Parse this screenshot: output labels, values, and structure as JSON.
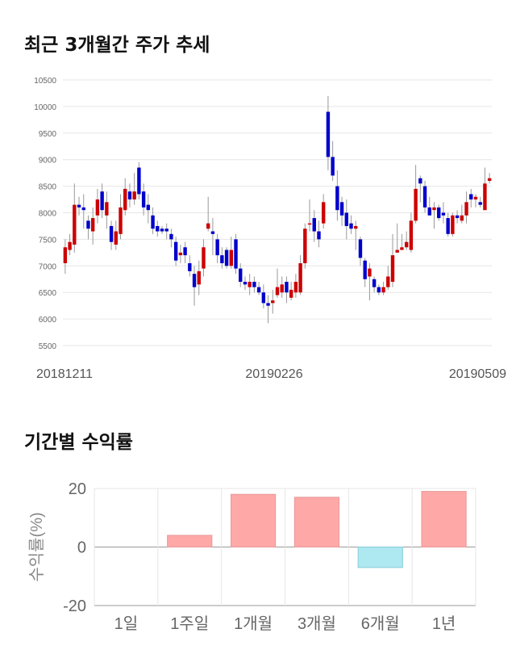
{
  "sections": {
    "price_trend_title": "최근 3개월간 주가 추세",
    "returns_title": "기간별 수익률"
  },
  "chart_data": [
    {
      "type": "candlestick",
      "title": "최근 3개월간 주가 추세",
      "ylim": [
        5500,
        10500
      ],
      "yticks": [
        5500,
        6000,
        6500,
        7000,
        7500,
        8000,
        8500,
        9000,
        9500,
        10000,
        10500
      ],
      "xticks": [
        "20181211",
        "20190226",
        "20190509"
      ],
      "grid": true,
      "up_color": "#cc0000",
      "down_color": "#0000cc",
      "candles": [
        [
          7050,
          7350,
          7500,
          6850
        ],
        [
          7300,
          7450,
          7600,
          7200
        ],
        [
          7400,
          8150,
          8550,
          7250
        ],
        [
          8150,
          8100,
          8300,
          7950
        ],
        [
          8100,
          8050,
          8350,
          7700
        ],
        [
          7850,
          7700,
          7950,
          7500
        ],
        [
          7650,
          7900,
          8100,
          7400
        ],
        [
          7950,
          8250,
          8450,
          7800
        ],
        [
          8400,
          8050,
          8550,
          7900
        ],
        [
          7950,
          8200,
          8400,
          7700
        ],
        [
          7750,
          7450,
          7850,
          7300
        ],
        [
          7400,
          7650,
          7850,
          7300
        ],
        [
          7600,
          8100,
          8350,
          7500
        ],
        [
          8050,
          8450,
          8650,
          7950
        ],
        [
          8400,
          8250,
          8550,
          8100
        ],
        [
          8250,
          8400,
          8750,
          8150
        ],
        [
          8850,
          8350,
          8950,
          8250
        ],
        [
          8400,
          8100,
          8550,
          7950
        ],
        [
          8150,
          8050,
          8350,
          7800
        ],
        [
          7950,
          7700,
          8100,
          7600
        ],
        [
          7750,
          7650,
          7850,
          7550
        ],
        [
          7700,
          7650,
          7750,
          7600
        ],
        [
          7700,
          7650,
          7800,
          7500
        ],
        [
          7600,
          7500,
          7700,
          7350
        ],
        [
          7450,
          7100,
          7550,
          7000
        ],
        [
          7200,
          7250,
          7400,
          7050
        ],
        [
          7350,
          7200,
          7450,
          7050
        ],
        [
          7050,
          6900,
          7200,
          6800
        ],
        [
          6850,
          6600,
          7000,
          6250
        ],
        [
          6650,
          6900,
          7100,
          6450
        ],
        [
          6950,
          7350,
          7500,
          6800
        ],
        [
          7700,
          7800,
          8300,
          7650
        ],
        [
          7650,
          7600,
          7900,
          7200
        ],
        [
          7500,
          7200,
          7600,
          7050
        ],
        [
          7200,
          7050,
          7350,
          6950
        ],
        [
          7300,
          7000,
          7350,
          6950
        ],
        [
          7000,
          7300,
          7550,
          6950
        ],
        [
          7500,
          6950,
          7600,
          6850
        ],
        [
          6950,
          6700,
          7050,
          6600
        ],
        [
          6700,
          6650,
          6800,
          6550
        ],
        [
          6600,
          6700,
          6850,
          6450
        ],
        [
          6700,
          6600,
          6800,
          6500
        ],
        [
          6600,
          6500,
          6700,
          6450
        ],
        [
          6500,
          6300,
          6650,
          6200
        ],
        [
          6300,
          6250,
          6450,
          5920
        ],
        [
          6300,
          6350,
          6550,
          6100
        ],
        [
          6450,
          6600,
          6950,
          6400
        ],
        [
          6500,
          6650,
          6800,
          6400
        ],
        [
          6700,
          6500,
          6800,
          6300
        ],
        [
          6400,
          6550,
          6700,
          6350
        ],
        [
          6500,
          6700,
          6850,
          6400
        ],
        [
          6500,
          7050,
          7200,
          6450
        ],
        [
          7050,
          7700,
          7800,
          6950
        ],
        [
          7800,
          7800,
          8250,
          7650
        ],
        [
          7900,
          7650,
          8050,
          7450
        ],
        [
          7650,
          7500,
          7850,
          7350
        ],
        [
          7800,
          8200,
          8350,
          7700
        ],
        [
          9900,
          9050,
          10200,
          8800
        ],
        [
          9050,
          8700,
          9350,
          8600
        ],
        [
          8500,
          8050,
          8800,
          7850
        ],
        [
          8200,
          7950,
          8300,
          7750
        ],
        [
          8000,
          7750,
          8250,
          7500
        ],
        [
          7800,
          7700,
          7950,
          7600
        ],
        [
          7700,
          7750,
          7850,
          7300
        ],
        [
          7500,
          7150,
          7550,
          7000
        ],
        [
          7100,
          6750,
          7150,
          6600
        ],
        [
          6800,
          6950,
          7050,
          6350
        ],
        [
          6750,
          6600,
          6800,
          6500
        ],
        [
          6600,
          6500,
          6650,
          6450
        ],
        [
          6500,
          6600,
          6700,
          6450
        ],
        [
          6600,
          6800,
          7000,
          6550
        ],
        [
          6700,
          7200,
          7600,
          6600
        ],
        [
          7250,
          7300,
          7800,
          7250
        ],
        [
          7300,
          7350,
          7600,
          7300
        ],
        [
          7350,
          7450,
          7650,
          7300
        ],
        [
          7300,
          7850,
          8000,
          7250
        ],
        [
          7850,
          8450,
          8900,
          7800
        ],
        [
          8650,
          8550,
          8700,
          8200
        ],
        [
          8500,
          8100,
          8600,
          8000
        ],
        [
          8100,
          7950,
          8300,
          7950
        ],
        [
          8050,
          8100,
          8200,
          7700
        ],
        [
          8100,
          7900,
          8150,
          7850
        ],
        [
          8000,
          7950,
          8200,
          7800
        ],
        [
          7900,
          7600,
          8000,
          7550
        ],
        [
          7600,
          7950,
          8000,
          7550
        ],
        [
          7950,
          7900,
          8050,
          7800
        ],
        [
          7850,
          7950,
          8150,
          7800
        ],
        [
          7950,
          8200,
          8400,
          7800
        ],
        [
          8350,
          8250,
          8450,
          8100
        ],
        [
          8250,
          8300,
          8350,
          8100
        ],
        [
          8200,
          8150,
          8300,
          8100
        ],
        [
          8050,
          8550,
          8850,
          8050
        ],
        [
          8600,
          8650,
          8750,
          8550
        ]
      ]
    },
    {
      "type": "bar",
      "title": "기간별 수익률",
      "ylabel": "수익률(%)",
      "ylim": [
        -20,
        20
      ],
      "yticks": [
        -20,
        0,
        20
      ],
      "categories": [
        "1일",
        "1주일",
        "1개월",
        "3개월",
        "6개월",
        "1년"
      ],
      "values": [
        0,
        4.0,
        18.0,
        17.0,
        -7.0,
        19.0
      ],
      "positive_color": "#ffa8a8",
      "negative_color": "#aee8f0",
      "grid": true
    }
  ]
}
